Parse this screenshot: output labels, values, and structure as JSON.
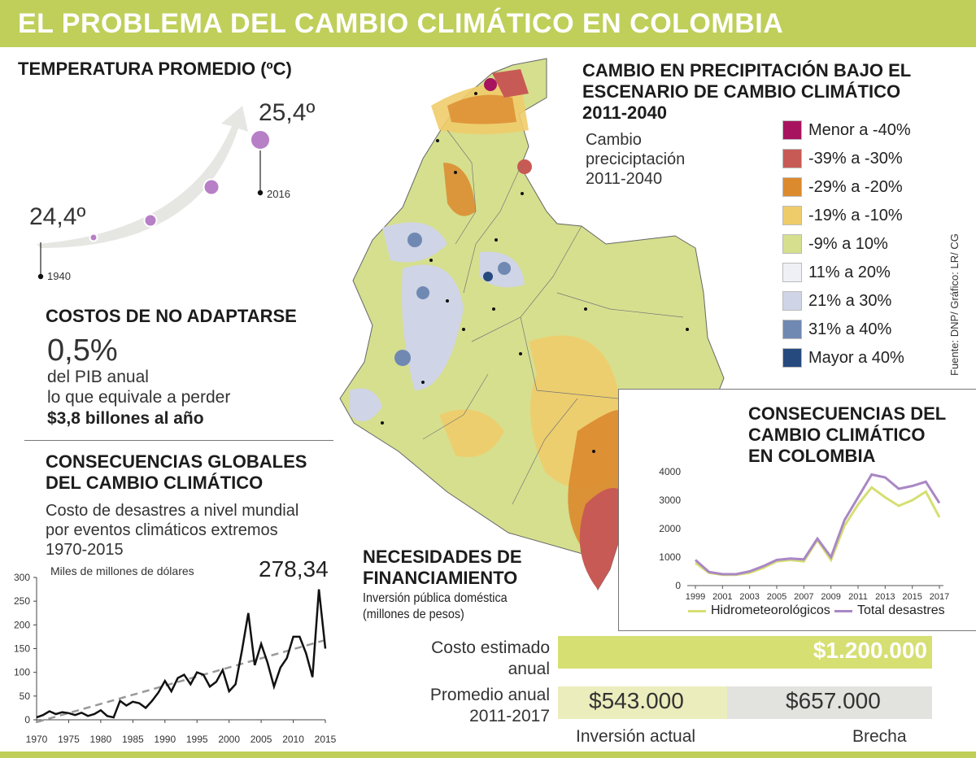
{
  "title": "EL PROBLEMA DEL CAMBIO CLIMÁTICO EN COLOMBIA",
  "source": "Fuente: DNP/ Gráfico: LR/ CG",
  "temperature": {
    "heading": "TEMPERATURA PROMEDIO (ºC)",
    "start_value": "24,4º",
    "end_value": "25,4º",
    "start_year": "1940",
    "end_year": "2016"
  },
  "costs": {
    "heading": "COSTOS DE NO ADAPTARSE",
    "pct": "0,5%",
    "line1": "del PIB anual",
    "line2": "lo que equivale a perder",
    "line3": "$3,8 billones al año"
  },
  "global": {
    "heading1": "CONSECUENCIAS GLOBALES",
    "heading2": "DEL CAMBIO CLIMÁTICO",
    "sub1": "Costo de desastres a nivel mundial",
    "sub2": "por eventos climáticos extremos",
    "sub3": "1970-2015",
    "units": "Miles de millones de dólares",
    "peak_label": "278,34"
  },
  "precip": {
    "heading1": "CAMBIO EN PRECIPITACIÓN BAJO EL",
    "heading2": "ESCENARIO DE CAMBIO CLIMÁTICO",
    "heading3": "2011-2040",
    "sub1": "Cambio",
    "sub2": "preciciptación",
    "sub3": "2011-2040",
    "legend": [
      {
        "label": "Menor a -40%",
        "color": "#a8135f"
      },
      {
        "label": "-39% a -30%",
        "color": "#c85a55"
      },
      {
        "label": "-29% a -20%",
        "color": "#dc8a2e"
      },
      {
        "label": "-19% a -10%",
        "color": "#efcc6a"
      },
      {
        "label": "-9% a 10%",
        "color": "#d6df8e"
      },
      {
        "label": "11% a 20%",
        "color": "#eef0f6"
      },
      {
        "label": "21% a 30%",
        "color": "#cfd4e6"
      },
      {
        "label": "31% a 40%",
        "color": "#7089b3"
      },
      {
        "label": "Mayor a 40%",
        "color": "#274a7e"
      }
    ]
  },
  "colombia": {
    "heading1": "CONSECUENCIAS DEL",
    "heading2": "CAMBIO CLIMÁTICO",
    "heading3": "EN COLOMBIA"
  },
  "financing": {
    "heading1": "NECESIDADES DE",
    "heading2": "FINANCIAMIENTO",
    "sub1": "Inversión pública doméstica",
    "sub2": "(millones de pesos)",
    "row1_label1": "Costo estimado",
    "row1_label2": "anual",
    "row1_value": "$1.200.000",
    "row2_label1": "Promedio anual",
    "row2_label2": "2011-2017",
    "row2_value_a": "$543.000",
    "row2_value_b": "$657.000",
    "caption_a": "Inversión actual",
    "caption_b": "Brecha",
    "colors": {
      "total": "#d6df72",
      "current": "#ebedbd",
      "gap": "#e2e2de"
    }
  },
  "chart_data": [
    {
      "type": "line",
      "title": "TEMPERATURA PROMEDIO (ºC)",
      "x": [
        1940,
        2016
      ],
      "values": [
        24.4,
        25.4
      ],
      "point_labels": [
        "24,4º",
        "25,4º"
      ],
      "xlabel": "",
      "ylabel": "ºC"
    },
    {
      "type": "line",
      "title": "Costo de desastres a nivel mundial por eventos climáticos extremos 1970-2015",
      "ylabel": "Miles de millones de dólares",
      "xlim": [
        1970,
        2015
      ],
      "ylim": [
        0,
        300
      ],
      "x_ticks": [
        "1970",
        "1975",
        "1980",
        "1985",
        "1990",
        "1995",
        "2000",
        "2005",
        "2010",
        "2015"
      ],
      "y_ticks": [
        "0",
        "50",
        "100",
        "150",
        "200",
        "250",
        "300"
      ],
      "series": [
        {
          "name": "Costo",
          "x": [
            1970,
            1971,
            1972,
            1973,
            1974,
            1975,
            1976,
            1977,
            1978,
            1979,
            1980,
            1981,
            1982,
            1983,
            1984,
            1985,
            1986,
            1987,
            1988,
            1989,
            1990,
            1991,
            1992,
            1993,
            1994,
            1995,
            1996,
            1997,
            1998,
            1999,
            2000,
            2001,
            2002,
            2003,
            2004,
            2005,
            2006,
            2007,
            2008,
            2009,
            2010,
            2011,
            2012,
            2013,
            2014,
            2015
          ],
          "values": [
            5,
            10,
            18,
            12,
            16,
            14,
            10,
            15,
            8,
            12,
            20,
            8,
            5,
            40,
            30,
            38,
            35,
            25,
            40,
            58,
            82,
            60,
            88,
            95,
            75,
            100,
            95,
            70,
            80,
            105,
            60,
            75,
            145,
            225,
            115,
            160,
            120,
            70,
            110,
            130,
            175,
            175,
            140,
            90,
            275,
            150
          ]
        },
        {
          "name": "Tendencia",
          "x": [
            1970,
            2015
          ],
          "values": [
            -5,
            168
          ]
        }
      ]
    },
    {
      "type": "line",
      "title": "CONSECUENCIAS DEL CAMBIO CLIMÁTICO EN COLOMBIA",
      "x": [
        1999,
        2000,
        2001,
        2002,
        2003,
        2004,
        2005,
        2006,
        2007,
        2008,
        2009,
        2010,
        2011,
        2012,
        2013,
        2014,
        2015,
        2016,
        2017
      ],
      "x_ticks": [
        "1999",
        "2001",
        "2003",
        "2005",
        "2007",
        "2009",
        "2011",
        "2013",
        "2015",
        "2017"
      ],
      "extra_x_ticks": [
        "2013"
      ],
      "y_ticks": [
        "0",
        "1000",
        "2000",
        "3000",
        "4000"
      ],
      "ylim": [
        0,
        4000
      ],
      "series": [
        {
          "name": "Hidrometeorológicos",
          "color": "#d6df72",
          "values": [
            800,
            450,
            380,
            380,
            450,
            620,
            850,
            900,
            850,
            1600,
            900,
            2100,
            2850,
            3450,
            3100,
            2800,
            3000,
            3300,
            2400
          ]
        },
        {
          "name": "Total desastres",
          "color": "#a987c5",
          "values": [
            900,
            480,
            400,
            400,
            500,
            680,
            900,
            950,
            920,
            1650,
            1000,
            2300,
            3100,
            3900,
            3800,
            3400,
            3500,
            3650,
            2900
          ]
        }
      ]
    },
    {
      "type": "bar",
      "title": "NECESIDADES DE FINANCIAMIENTO",
      "categories": [
        "Costo estimado anual",
        "Promedio anual 2011-2017"
      ],
      "series": [
        {
          "name": "Total",
          "values": [
            1200000,
            null
          ]
        },
        {
          "name": "Inversión actual",
          "values": [
            null,
            543000
          ]
        },
        {
          "name": "Brecha",
          "values": [
            null,
            657000
          ]
        }
      ],
      "ylabel": "millones de pesos"
    }
  ]
}
